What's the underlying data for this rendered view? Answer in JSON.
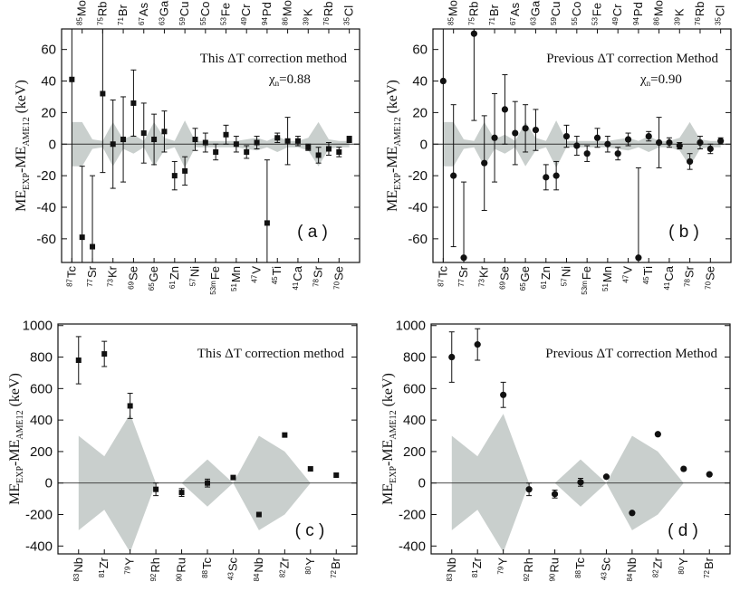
{
  "figure": {
    "y_axis_label": {
      "main": "ME",
      "sub1": "EXP",
      "mid": "-ME",
      "sub2": "AME12",
      "unit": " (keV)"
    }
  },
  "chart_data": [
    {
      "type": "scatter",
      "panel": "a",
      "panel_label": "( a )",
      "annotation": "This ΔT correction method",
      "chi_label": "χ",
      "chi_sub": "n",
      "chi_value": "=0.88",
      "marker": "square",
      "ylim": [
        -75,
        73
      ],
      "yticks": [
        -60,
        -40,
        -20,
        0,
        20,
        40,
        60
      ],
      "bottom_isotopes": [
        {
          "mass": "87",
          "sym": "Tc"
        },
        {
          "mass": "77",
          "sym": "Sr"
        },
        {
          "mass": "73",
          "sym": "Kr"
        },
        {
          "mass": "69",
          "sym": "Se"
        },
        {
          "mass": "65",
          "sym": "Ge"
        },
        {
          "mass": "61",
          "sym": "Zn"
        },
        {
          "mass": "57",
          "sym": "Ni"
        },
        {
          "mass": "53m",
          "sym": "Fe"
        },
        {
          "mass": "51",
          "sym": "Mn"
        },
        {
          "mass": "47",
          "sym": "V"
        },
        {
          "mass": "45",
          "sym": "Ti"
        },
        {
          "mass": "41",
          "sym": "Ca"
        },
        {
          "mass": "78",
          "sym": "Sr"
        },
        {
          "mass": "70",
          "sym": "Se"
        }
      ],
      "top_isotopes": [
        {
          "mass": "85",
          "sym": "Mo"
        },
        {
          "mass": "75",
          "sym": "Rb"
        },
        {
          "mass": "71",
          "sym": "Br"
        },
        {
          "mass": "67",
          "sym": "As"
        },
        {
          "mass": "63",
          "sym": "Ga"
        },
        {
          "mass": "59",
          "sym": "Cu"
        },
        {
          "mass": "55",
          "sym": "Co"
        },
        {
          "mass": "53",
          "sym": "Fe"
        },
        {
          "mass": "49",
          "sym": "Cr"
        },
        {
          "mass": "94",
          "sym": "Pd"
        },
        {
          "mass": "86",
          "sym": "Mo"
        },
        {
          "mass": "39",
          "sym": "K"
        },
        {
          "mass": "76",
          "sym": "Rb"
        },
        {
          "mass": "35",
          "sym": "Cl"
        }
      ],
      "x": [
        1,
        1.5,
        2,
        2.5,
        3,
        3.5,
        4,
        4.5,
        5,
        5.5,
        6,
        6.5,
        7,
        7.5,
        8,
        8.5,
        9,
        9.5,
        10,
        10.5,
        11,
        11.5,
        12,
        12.5,
        13,
        13.5,
        14,
        14.5
      ],
      "y": [
        41,
        -59,
        -65,
        32,
        0,
        3,
        26,
        7,
        3,
        8,
        -20,
        -17,
        3,
        1,
        -5,
        6,
        0,
        -5,
        1,
        -50,
        4,
        2,
        2,
        -2,
        -7,
        -3,
        -5,
        3
      ],
      "yerr": [
        120,
        45,
        45,
        50,
        28,
        27,
        21,
        19,
        16,
        13,
        9,
        9,
        7,
        6,
        5,
        6,
        5,
        4,
        4,
        40,
        3,
        15,
        3,
        2,
        5,
        4,
        3,
        2
      ],
      "band_x": [
        1,
        1.5,
        2,
        2.5,
        3,
        3.5,
        4,
        4.5,
        5,
        5.5,
        6,
        6.5,
        7,
        7.5,
        8,
        8.5,
        9,
        9.5,
        10,
        10.5,
        11,
        11.5,
        12,
        12.5,
        13,
        13.5,
        14,
        14.5
      ],
      "band_half": [
        14,
        14,
        3,
        2,
        14,
        3,
        6,
        2,
        14,
        4,
        2,
        15,
        2,
        2,
        2,
        2,
        2,
        3,
        4,
        2,
        5,
        2,
        2,
        4,
        14,
        3,
        2,
        2
      ]
    },
    {
      "type": "scatter",
      "panel": "b",
      "panel_label": "( b )",
      "annotation": "Previous  ΔT correction Method",
      "chi_label": "χ",
      "chi_sub": "n",
      "chi_value": "=0.90",
      "marker": "circle",
      "ylim": [
        -75,
        73
      ],
      "yticks": [
        -60,
        -40,
        -20,
        0,
        20,
        40,
        60
      ],
      "bottom_isotopes": [
        {
          "mass": "87",
          "sym": "Tc"
        },
        {
          "mass": "77",
          "sym": "Sr"
        },
        {
          "mass": "73",
          "sym": "Kr"
        },
        {
          "mass": "69",
          "sym": "Se"
        },
        {
          "mass": "65",
          "sym": "Ge"
        },
        {
          "mass": "61",
          "sym": "Zn"
        },
        {
          "mass": "57",
          "sym": "Ni"
        },
        {
          "mass": "53m",
          "sym": "Fe"
        },
        {
          "mass": "51",
          "sym": "Mn"
        },
        {
          "mass": "47",
          "sym": "V"
        },
        {
          "mass": "45",
          "sym": "Ti"
        },
        {
          "mass": "41",
          "sym": "Ca"
        },
        {
          "mass": "78",
          "sym": "Sr"
        },
        {
          "mass": "70",
          "sym": "Se"
        }
      ],
      "top_isotopes": [
        {
          "mass": "85",
          "sym": "Mo"
        },
        {
          "mass": "75",
          "sym": "Rb"
        },
        {
          "mass": "71",
          "sym": "Br"
        },
        {
          "mass": "67",
          "sym": "As"
        },
        {
          "mass": "63",
          "sym": "Ga"
        },
        {
          "mass": "59",
          "sym": "Cu"
        },
        {
          "mass": "55",
          "sym": "Co"
        },
        {
          "mass": "53",
          "sym": "Fe"
        },
        {
          "mass": "49",
          "sym": "Cr"
        },
        {
          "mass": "94",
          "sym": "Pd"
        },
        {
          "mass": "86",
          "sym": "Mo"
        },
        {
          "mass": "39",
          "sym": "K"
        },
        {
          "mass": "76",
          "sym": "Rb"
        },
        {
          "mass": "35",
          "sym": "Cl"
        }
      ],
      "x": [
        1,
        1.5,
        2,
        2.5,
        3,
        3.5,
        4,
        4.5,
        5,
        5.5,
        6,
        6.5,
        7,
        7.5,
        8,
        8.5,
        9,
        9.5,
        10,
        10.5,
        11,
        11.5,
        12,
        12.5,
        13,
        13.5,
        14,
        14.5
      ],
      "y": [
        40,
        -20,
        -72,
        70,
        -12,
        4,
        22,
        7,
        10,
        9,
        -21,
        -20,
        5,
        -1,
        -6,
        4,
        0,
        -6,
        3,
        -72,
        5,
        1,
        1,
        -1,
        -11,
        1,
        -3,
        2
      ],
      "yerr": [
        120,
        45,
        48,
        55,
        30,
        28,
        22,
        20,
        15,
        13,
        8,
        9,
        7,
        6,
        5,
        6,
        5,
        4,
        4,
        57,
        3,
        16,
        3,
        2,
        5,
        4,
        3,
        2
      ],
      "band_x": [
        1,
        1.5,
        2,
        2.5,
        3,
        3.5,
        4,
        4.5,
        5,
        5.5,
        6,
        6.5,
        7,
        7.5,
        8,
        8.5,
        9,
        9.5,
        10,
        10.5,
        11,
        11.5,
        12,
        12.5,
        13,
        13.5,
        14,
        14.5
      ],
      "band_half": [
        14,
        14,
        3,
        2,
        14,
        3,
        6,
        2,
        14,
        4,
        2,
        15,
        2,
        2,
        2,
        2,
        2,
        3,
        4,
        2,
        5,
        2,
        2,
        4,
        14,
        3,
        2,
        2
      ]
    },
    {
      "type": "scatter",
      "panel": "c",
      "panel_label": "( c )",
      "annotation": "This ΔT correction method",
      "marker": "square",
      "ylim": [
        -450,
        1010
      ],
      "yticks": [
        -400,
        -200,
        0,
        200,
        400,
        600,
        800,
        1000
      ],
      "bottom_isotopes": [
        {
          "mass": "83",
          "sym": "Nb"
        },
        {
          "mass": "81",
          "sym": "Zr"
        },
        {
          "mass": "79",
          "sym": "Y"
        },
        {
          "mass": "92",
          "sym": "Rh"
        },
        {
          "mass": "90",
          "sym": "Ru"
        },
        {
          "mass": "88",
          "sym": "Tc"
        },
        {
          "mass": "43",
          "sym": "Sc"
        },
        {
          "mass": "84",
          "sym": "Nb"
        },
        {
          "mass": "82",
          "sym": "Zr"
        },
        {
          "mass": "80",
          "sym": "Y"
        },
        {
          "mass": "72",
          "sym": "Br"
        }
      ],
      "x": [
        1,
        2,
        3,
        4,
        5,
        6,
        7,
        8,
        9,
        10,
        11
      ],
      "y": [
        780,
        820,
        490,
        -40,
        -60,
        0,
        35,
        -200,
        305,
        90,
        50
      ],
      "yerr": [
        150,
        80,
        80,
        40,
        25,
        25,
        0,
        0,
        0,
        0,
        0
      ],
      "band_x": [
        1,
        2,
        3,
        4,
        4.5,
        5,
        6,
        7,
        8,
        9,
        10,
        11
      ],
      "band_half": [
        300,
        170,
        440,
        0,
        0,
        0,
        150,
        0,
        300,
        200,
        0,
        0
      ]
    },
    {
      "type": "scatter",
      "panel": "d",
      "panel_label": "( d )",
      "annotation": "Previous  ΔT correction Method",
      "marker": "circle",
      "ylim": [
        -450,
        1010
      ],
      "yticks": [
        -400,
        -200,
        0,
        200,
        400,
        600,
        800,
        1000
      ],
      "bottom_isotopes": [
        {
          "mass": "83",
          "sym": "Nb"
        },
        {
          "mass": "81",
          "sym": "Zr"
        },
        {
          "mass": "79",
          "sym": "Y"
        },
        {
          "mass": "92",
          "sym": "Rh"
        },
        {
          "mass": "90",
          "sym": "Ru"
        },
        {
          "mass": "88",
          "sym": "Tc"
        },
        {
          "mass": "43",
          "sym": "Sc"
        },
        {
          "mass": "84",
          "sym": "Nb"
        },
        {
          "mass": "82",
          "sym": "Zr"
        },
        {
          "mass": "80",
          "sym": "Y"
        },
        {
          "mass": "72",
          "sym": "Br"
        }
      ],
      "x": [
        1,
        2,
        3,
        4,
        5,
        6,
        7,
        8,
        9,
        10,
        11
      ],
      "y": [
        800,
        880,
        560,
        -40,
        -70,
        5,
        40,
        -190,
        310,
        90,
        55
      ],
      "yerr": [
        160,
        100,
        80,
        40,
        25,
        25,
        0,
        0,
        0,
        0,
        0
      ],
      "band_x": [
        1,
        2,
        3,
        4,
        4.5,
        5,
        6,
        7,
        8,
        9,
        10,
        11
      ],
      "band_half": [
        300,
        170,
        440,
        0,
        0,
        0,
        150,
        0,
        300,
        200,
        0,
        0
      ]
    }
  ]
}
